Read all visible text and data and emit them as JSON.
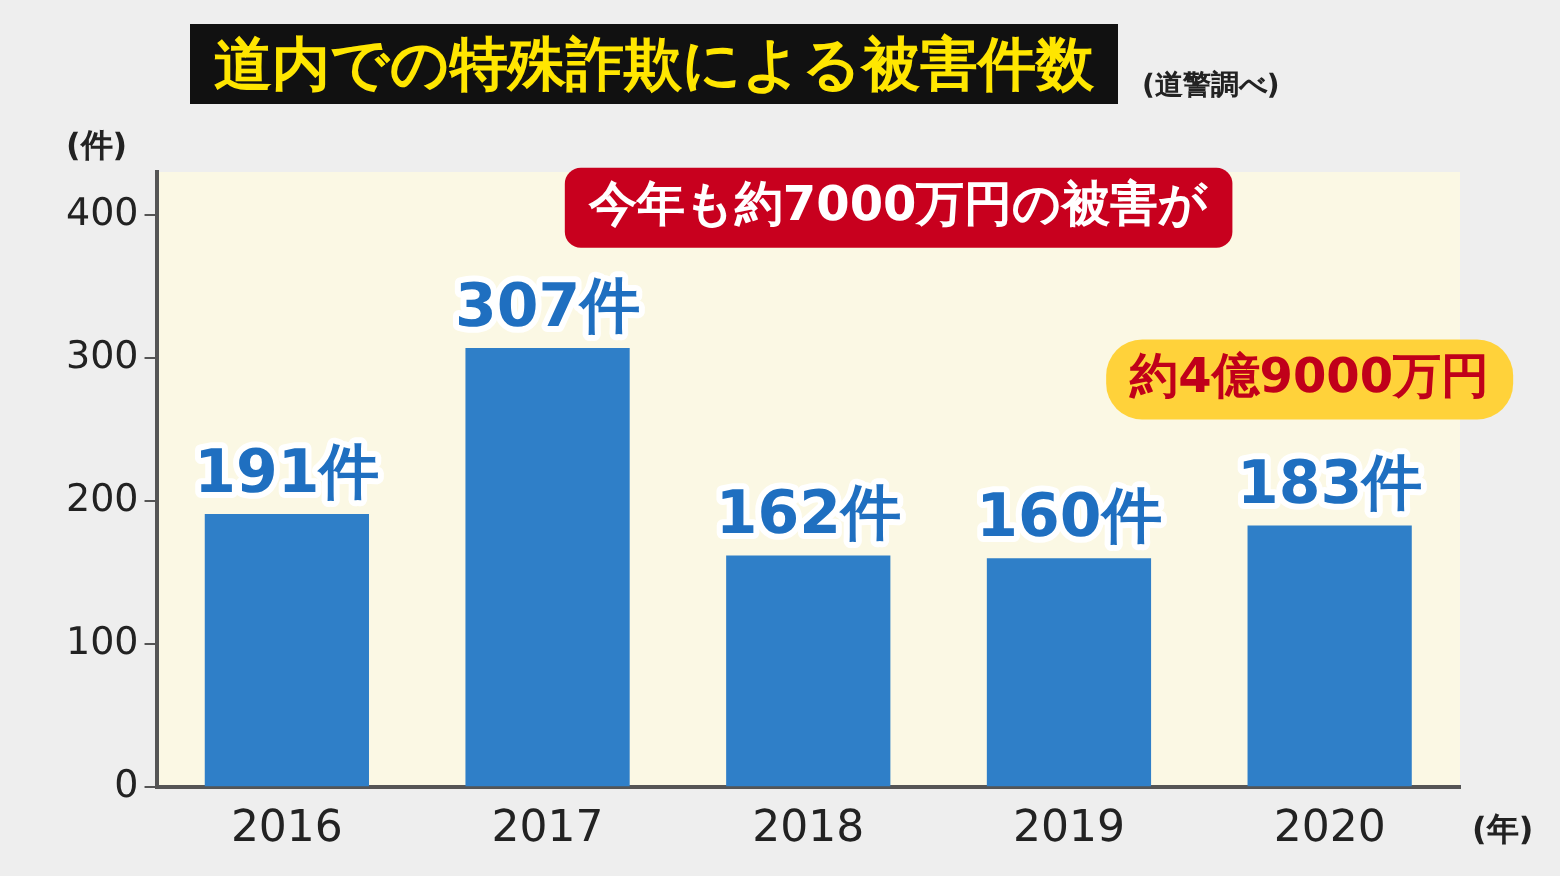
{
  "chart_data": {
    "type": "bar",
    "title": "道内での特殊詐欺による被害件数",
    "subtitle": "(道警調べ)",
    "xlabel": "(年)",
    "ylabel": "(件)",
    "categories": [
      "2016",
      "2017",
      "2018",
      "2019",
      "2020"
    ],
    "values": [
      191,
      307,
      162,
      160,
      183
    ],
    "value_labels": [
      "191件",
      "307件",
      "162件",
      "160件",
      "183件"
    ],
    "color": "#2f7fc8",
    "ylim": [
      0,
      430
    ],
    "yticks": [
      0,
      100,
      200,
      300,
      400
    ],
    "grid": false,
    "legend": false,
    "annotations": [
      "今年も約7000万円の被害が",
      "約4億9000万円"
    ]
  }
}
